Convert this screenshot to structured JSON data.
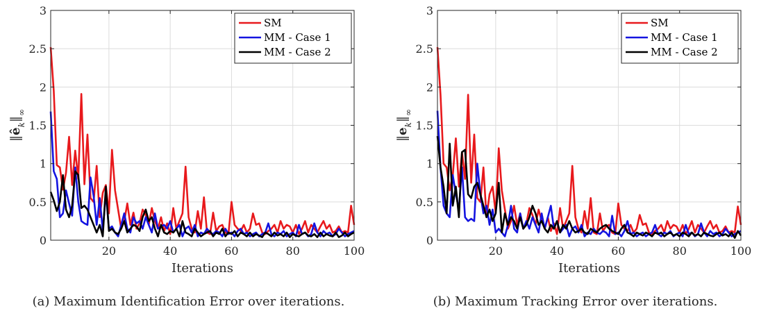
{
  "chart_data": [
    {
      "type": "line",
      "caption": "(a) Maximum Identification Error over iterations.",
      "xlabel": "Iterations",
      "ylabel": "‖ê_k‖∞",
      "xlim": [
        1,
        100
      ],
      "ylim": [
        0,
        3
      ],
      "xticks": [
        20,
        40,
        60,
        80,
        100
      ],
      "yticks": [
        0,
        0.5,
        1,
        1.5,
        2,
        2.5,
        3
      ],
      "grid": true,
      "legend_position": "top-right",
      "series": [
        {
          "name": "SM",
          "color": "#e8191c",
          "values": [
            2.52,
            1.95,
            0.98,
            0.95,
            0.66,
            0.88,
            1.35,
            0.72,
            1.17,
            0.8,
            1.91,
            0.73,
            1.38,
            0.55,
            0.5,
            0.97,
            0.3,
            0.62,
            0.72,
            0.35,
            1.18,
            0.65,
            0.4,
            0.15,
            0.25,
            0.48,
            0.2,
            0.36,
            0.15,
            0.22,
            0.4,
            0.33,
            0.2,
            0.42,
            0.25,
            0.15,
            0.3,
            0.12,
            0.22,
            0.08,
            0.42,
            0.15,
            0.25,
            0.35,
            0.96,
            0.3,
            0.15,
            0.1,
            0.38,
            0.15,
            0.56,
            0.1,
            0.08,
            0.36,
            0.12,
            0.18,
            0.2,
            0.1,
            0.08,
            0.5,
            0.2,
            0.15,
            0.12,
            0.2,
            0.1,
            0.15,
            0.35,
            0.2,
            0.22,
            0.1,
            0.08,
            0.12,
            0.15,
            0.2,
            0.1,
            0.25,
            0.15,
            0.2,
            0.18,
            0.1,
            0.2,
            0.08,
            0.15,
            0.25,
            0.1,
            0.2,
            0.15,
            0.1,
            0.18,
            0.25,
            0.15,
            0.2,
            0.1,
            0.12,
            0.18,
            0.1,
            0.12,
            0.1,
            0.45,
            0.2
          ]
        },
        {
          "name": "MM - Case 1",
          "color": "#1414e0",
          "values": [
            1.68,
            0.9,
            0.8,
            0.3,
            0.35,
            0.65,
            0.48,
            0.32,
            0.95,
            0.5,
            0.25,
            0.22,
            0.2,
            0.82,
            0.58,
            0.2,
            0.55,
            0.12,
            0.62,
            0.15,
            0.18,
            0.1,
            0.05,
            0.2,
            0.35,
            0.15,
            0.1,
            0.3,
            0.22,
            0.25,
            0.15,
            0.3,
            0.2,
            0.1,
            0.35,
            0.15,
            0.18,
            0.2,
            0.15,
            0.25,
            0.1,
            0.15,
            0.2,
            0.05,
            0.15,
            0.18,
            0.1,
            0.2,
            0.05,
            0.1,
            0.08,
            0.15,
            0.1,
            0.08,
            0.12,
            0.1,
            0.05,
            0.15,
            0.08,
            0.1,
            0.05,
            0.12,
            0.15,
            0.08,
            0.1,
            0.05,
            0.08,
            0.1,
            0.05,
            0.08,
            0.1,
            0.22,
            0.08,
            0.05,
            0.1,
            0.08,
            0.12,
            0.05,
            0.08,
            0.1,
            0.05,
            0.2,
            0.08,
            0.1,
            0.05,
            0.08,
            0.22,
            0.1,
            0.05,
            0.12,
            0.08,
            0.1,
            0.05,
            0.08,
            0.15,
            0.1,
            0.05,
            0.08,
            0.1,
            0.12
          ]
        },
        {
          "name": "MM - Case 2",
          "color": "#000000",
          "values": [
            0.63,
            0.52,
            0.38,
            0.5,
            0.85,
            0.4,
            0.3,
            0.45,
            0.9,
            0.85,
            0.42,
            0.45,
            0.4,
            0.3,
            0.2,
            0.1,
            0.2,
            0.05,
            0.7,
            0.12,
            0.15,
            0.1,
            0.08,
            0.15,
            0.25,
            0.1,
            0.15,
            0.2,
            0.18,
            0.12,
            0.3,
            0.4,
            0.25,
            0.3,
            0.15,
            0.05,
            0.2,
            0.1,
            0.08,
            0.12,
            0.1,
            0.15,
            0.05,
            0.25,
            0.1,
            0.08,
            0.05,
            0.15,
            0.1,
            0.05,
            0.08,
            0.1,
            0.12,
            0.05,
            0.1,
            0.08,
            0.15,
            0.05,
            0.1,
            0.08,
            0.12,
            0.05,
            0.1,
            0.08,
            0.05,
            0.1,
            0.05,
            0.08,
            0.06,
            0.04,
            0.1,
            0.08,
            0.05,
            0.1,
            0.06,
            0.08,
            0.05,
            0.1,
            0.04,
            0.08,
            0.06,
            0.05,
            0.08,
            0.1,
            0.06,
            0.05,
            0.08,
            0.04,
            0.1,
            0.05,
            0.08,
            0.06,
            0.05,
            0.1,
            0.04,
            0.06,
            0.1,
            0.05,
            0.08,
            0.1
          ]
        }
      ]
    },
    {
      "type": "line",
      "caption": "(b) Maximum Tracking Error over iterations.",
      "xlabel": "Iterations",
      "ylabel": "‖e_k‖∞",
      "xlim": [
        1,
        100
      ],
      "ylim": [
        0,
        3
      ],
      "xticks": [
        20,
        40,
        60,
        80,
        100
      ],
      "yticks": [
        0,
        0.5,
        1,
        1.5,
        2,
        2.5,
        3
      ],
      "grid": true,
      "legend_position": "top-right",
      "series": [
        {
          "name": "SM",
          "color": "#e8191c",
          "values": [
            2.52,
            1.9,
            1.0,
            0.95,
            0.65,
            0.85,
            1.33,
            0.7,
            1.15,
            0.8,
            1.9,
            0.75,
            1.38,
            0.55,
            0.5,
            0.95,
            0.3,
            0.6,
            0.7,
            0.35,
            1.2,
            0.65,
            0.4,
            0.15,
            0.25,
            0.45,
            0.2,
            0.35,
            0.15,
            0.22,
            0.42,
            0.33,
            0.2,
            0.4,
            0.25,
            0.15,
            0.3,
            0.12,
            0.22,
            0.08,
            0.42,
            0.15,
            0.25,
            0.35,
            0.97,
            0.3,
            0.15,
            0.1,
            0.38,
            0.15,
            0.55,
            0.1,
            0.08,
            0.35,
            0.12,
            0.18,
            0.2,
            0.1,
            0.08,
            0.48,
            0.2,
            0.15,
            0.12,
            0.2,
            0.1,
            0.15,
            0.33,
            0.2,
            0.22,
            0.1,
            0.08,
            0.12,
            0.15,
            0.2,
            0.1,
            0.25,
            0.15,
            0.2,
            0.18,
            0.1,
            0.2,
            0.08,
            0.15,
            0.25,
            0.1,
            0.2,
            0.15,
            0.1,
            0.18,
            0.25,
            0.15,
            0.2,
            0.1,
            0.12,
            0.18,
            0.1,
            0.12,
            0.1,
            0.44,
            0.2
          ]
        },
        {
          "name": "MM - Case 1",
          "color": "#1414e0",
          "values": [
            1.69,
            0.95,
            0.45,
            0.35,
            0.3,
            0.85,
            0.6,
            0.4,
            0.95,
            0.3,
            0.25,
            0.28,
            0.25,
            1.0,
            0.6,
            0.35,
            0.45,
            0.2,
            0.4,
            0.1,
            0.15,
            0.1,
            0.05,
            0.2,
            0.45,
            0.15,
            0.1,
            0.35,
            0.15,
            0.25,
            0.15,
            0.3,
            0.2,
            0.1,
            0.35,
            0.15,
            0.3,
            0.45,
            0.15,
            0.25,
            0.1,
            0.15,
            0.2,
            0.05,
            0.15,
            0.18,
            0.1,
            0.2,
            0.05,
            0.1,
            0.08,
            0.15,
            0.1,
            0.08,
            0.12,
            0.1,
            0.05,
            0.32,
            0.08,
            0.1,
            0.05,
            0.12,
            0.25,
            0.08,
            0.1,
            0.05,
            0.08,
            0.1,
            0.05,
            0.08,
            0.1,
            0.2,
            0.08,
            0.05,
            0.1,
            0.08,
            0.12,
            0.05,
            0.08,
            0.1,
            0.05,
            0.2,
            0.08,
            0.1,
            0.05,
            0.08,
            0.22,
            0.1,
            0.05,
            0.12,
            0.08,
            0.1,
            0.05,
            0.08,
            0.15,
            0.1,
            0.05,
            0.08,
            0.1,
            0.12
          ]
        },
        {
          "name": "MM - Case 2",
          "color": "#000000",
          "values": [
            1.36,
            0.95,
            0.7,
            0.35,
            1.26,
            0.45,
            0.7,
            0.3,
            1.15,
            1.18,
            0.6,
            0.55,
            0.7,
            0.75,
            0.6,
            0.45,
            0.3,
            0.4,
            0.25,
            0.35,
            0.75,
            0.1,
            0.35,
            0.2,
            0.3,
            0.25,
            0.15,
            0.3,
            0.15,
            0.2,
            0.3,
            0.45,
            0.35,
            0.2,
            0.25,
            0.15,
            0.1,
            0.2,
            0.15,
            0.25,
            0.1,
            0.2,
            0.15,
            0.25,
            0.15,
            0.1,
            0.12,
            0.15,
            0.1,
            0.08,
            0.15,
            0.12,
            0.1,
            0.15,
            0.18,
            0.2,
            0.15,
            0.12,
            0.1,
            0.08,
            0.15,
            0.2,
            0.1,
            0.08,
            0.05,
            0.1,
            0.08,
            0.06,
            0.1,
            0.08,
            0.05,
            0.1,
            0.08,
            0.1,
            0.05,
            0.08,
            0.1,
            0.06,
            0.08,
            0.05,
            0.1,
            0.08,
            0.05,
            0.1,
            0.06,
            0.08,
            0.05,
            0.1,
            0.08,
            0.06,
            0.05,
            0.08,
            0.1,
            0.06,
            0.08,
            0.05,
            0.1,
            0.03,
            0.12,
            0.06
          ]
        }
      ]
    }
  ]
}
